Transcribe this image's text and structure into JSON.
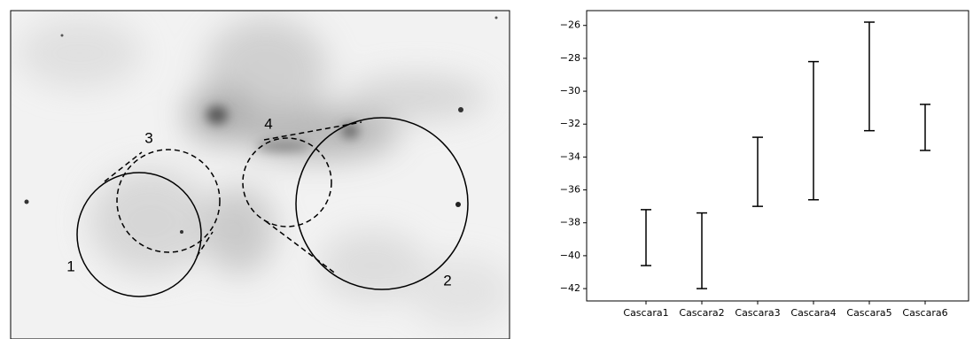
{
  "image_labels": [
    "1",
    "2",
    "3",
    "4"
  ],
  "chart_data": {
    "type": "range",
    "categories": [
      "Cascara1",
      "Cascara2",
      "Cascara3",
      "Cascara4",
      "Cascara5",
      "Cascara6"
    ],
    "low": [
      -40.6,
      -42.0,
      -37.0,
      -36.6,
      -32.4,
      -33.6
    ],
    "high": [
      -37.2,
      -37.4,
      -32.8,
      -28.2,
      -25.8,
      -30.8
    ],
    "color": "#000000",
    "ylim": [
      -42.75,
      -25.1
    ],
    "yticks": [
      {
        "value": -42,
        "label": "−42"
      },
      {
        "value": -40,
        "label": "−40"
      },
      {
        "value": -38,
        "label": "−38"
      },
      {
        "value": -36,
        "label": "−36"
      },
      {
        "value": -34,
        "label": "−34"
      },
      {
        "value": -32,
        "label": "−32"
      },
      {
        "value": -30,
        "label": "−30"
      },
      {
        "value": -28,
        "label": "−28"
      },
      {
        "value": -26,
        "label": "−26"
      }
    ]
  }
}
